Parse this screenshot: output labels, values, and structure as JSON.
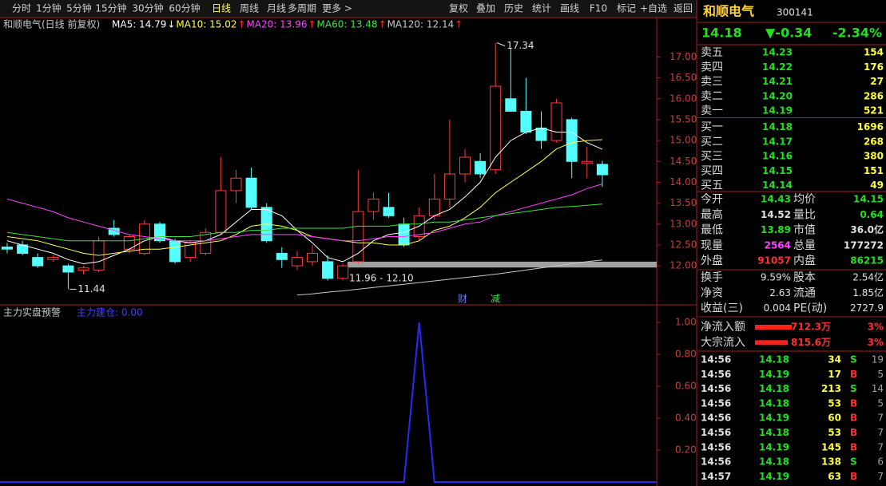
{
  "toolbar": {
    "periods": [
      "分时",
      "1分钟",
      "5分钟",
      "15分钟",
      "30分钟",
      "60分钟",
      "日线",
      "周线",
      "月线",
      "多周期",
      "更多 >"
    ],
    "actions": [
      "复权",
      "叠加",
      "历史",
      "统计",
      "画线",
      "F10",
      "标记",
      "+自选",
      "返回"
    ]
  },
  "kline": {
    "title": "和顺电气(日线 前复权)",
    "ma": [
      {
        "name": "MA5: 14.79",
        "arrow": "↓",
        "color": "#ffffff",
        "values": [
          12.6,
          12.5,
          12.4,
          12.3,
          12.15,
          12.05,
          12.1,
          12.25,
          12.4,
          12.6,
          12.7,
          12.6,
          12.55,
          12.6,
          12.75,
          13.05,
          13.35,
          13.35,
          13.2,
          12.85,
          12.55,
          12.2,
          12.1,
          12.3,
          12.6,
          12.75,
          12.8,
          12.95,
          13.2,
          13.35,
          13.65,
          14.0,
          14.6,
          15.0,
          15.2,
          15.3,
          15.2,
          15.2,
          14.95,
          14.79
        ]
      },
      {
        "name": "MA10: 15.02",
        "arrow": "↑",
        "color": "#ffff40",
        "values": [
          12.7,
          12.65,
          12.6,
          12.5,
          12.4,
          12.3,
          12.25,
          12.3,
          12.35,
          12.4,
          12.4,
          12.45,
          12.5,
          12.55,
          12.6,
          12.75,
          12.95,
          13.0,
          12.95,
          12.85,
          12.7,
          12.65,
          12.6,
          12.55,
          12.55,
          12.5,
          12.5,
          12.6,
          12.85,
          12.95,
          13.15,
          13.4,
          13.75,
          14.0,
          14.25,
          14.5,
          14.8,
          14.95,
          15.0,
          15.02
        ]
      },
      {
        "name": "MA20: 13.96",
        "arrow": "↑",
        "color": "#ff40ff",
        "values": [
          13.6,
          13.5,
          13.4,
          13.3,
          13.15,
          13.05,
          12.95,
          12.85,
          12.75,
          12.7,
          12.65,
          12.6,
          12.6,
          12.6,
          12.65,
          12.7,
          12.75,
          12.75,
          12.75,
          12.75,
          12.7,
          12.65,
          12.6,
          12.6,
          12.65,
          12.7,
          12.7,
          12.75,
          12.8,
          12.9,
          13.0,
          13.05,
          13.2,
          13.3,
          13.4,
          13.5,
          13.6,
          13.7,
          13.85,
          13.96
        ]
      },
      {
        "name": "MA60: 13.48",
        "arrow": "↑",
        "color": "#40e040",
        "values": [
          12.8,
          12.75,
          12.7,
          12.65,
          12.6,
          12.6,
          12.6,
          12.6,
          12.6,
          12.65,
          12.7,
          12.7,
          12.7,
          12.75,
          12.8,
          12.8,
          12.85,
          12.85,
          12.9,
          12.9,
          12.9,
          12.9,
          12.9,
          12.95,
          12.95,
          12.95,
          13.0,
          13.0,
          13.05,
          13.05,
          13.1,
          13.15,
          13.2,
          13.25,
          13.3,
          13.35,
          13.4,
          13.42,
          13.45,
          13.48
        ]
      },
      {
        "name": "MA120: 12.14",
        "arrow": "↑",
        "color": "#c8c8c8",
        "values": [
          null,
          null,
          null,
          null,
          null,
          null,
          null,
          null,
          null,
          null,
          null,
          null,
          null,
          null,
          null,
          null,
          null,
          null,
          null,
          11.3,
          11.33,
          11.37,
          11.4,
          11.44,
          11.48,
          11.52,
          11.56,
          11.6,
          11.64,
          11.68,
          11.72,
          11.76,
          11.8,
          11.85,
          11.9,
          11.95,
          12.0,
          12.05,
          12.1,
          12.14
        ]
      }
    ],
    "candles": [
      [
        12.45,
        12.55,
        12.3,
        12.4
      ],
      [
        12.5,
        12.6,
        12.25,
        12.3
      ],
      [
        12.2,
        12.3,
        11.95,
        12.0
      ],
      [
        12.15,
        12.25,
        12.1,
        12.2
      ],
      [
        12.0,
        12.05,
        11.44,
        11.85
      ],
      [
        11.9,
        12.0,
        11.8,
        11.95
      ],
      [
        11.9,
        12.7,
        11.85,
        12.6
      ],
      [
        12.9,
        13.1,
        12.7,
        12.75
      ],
      [
        12.4,
        12.75,
        12.3,
        12.7
      ],
      [
        12.3,
        13.1,
        12.25,
        13.0
      ],
      [
        13.0,
        13.05,
        12.55,
        12.6
      ],
      [
        12.6,
        12.65,
        12.05,
        12.1
      ],
      [
        12.2,
        12.6,
        12.1,
        12.55
      ],
      [
        12.3,
        12.9,
        12.25,
        12.8
      ],
      [
        12.8,
        14.6,
        12.75,
        13.8
      ],
      [
        13.8,
        14.3,
        13.5,
        14.1
      ],
      [
        14.1,
        14.35,
        13.35,
        13.4
      ],
      [
        13.4,
        13.5,
        12.55,
        12.6
      ],
      [
        12.3,
        12.45,
        11.95,
        12.15
      ],
      [
        12.0,
        12.35,
        11.9,
        12.2
      ],
      [
        12.1,
        12.5,
        12.0,
        12.3
      ],
      [
        12.1,
        12.25,
        11.65,
        11.7
      ],
      [
        11.7,
        12.05,
        11.65,
        12.0
      ],
      [
        12.1,
        14.3,
        12.05,
        13.3
      ],
      [
        13.3,
        13.75,
        13.1,
        13.6
      ],
      [
        13.4,
        13.75,
        13.15,
        13.2
      ],
      [
        13.0,
        13.15,
        12.45,
        12.5
      ],
      [
        12.7,
        13.4,
        12.6,
        13.2
      ],
      [
        13.2,
        14.2,
        13.1,
        13.6
      ],
      [
        13.6,
        15.5,
        13.4,
        14.2
      ],
      [
        14.2,
        14.8,
        14.0,
        14.6
      ],
      [
        14.5,
        14.7,
        14.1,
        14.2
      ],
      [
        14.3,
        17.34,
        14.2,
        16.3
      ],
      [
        16.0,
        17.2,
        15.7,
        15.7
      ],
      [
        15.7,
        16.5,
        15.15,
        15.2
      ],
      [
        15.3,
        15.7,
        14.8,
        15.0
      ],
      [
        15.0,
        16.0,
        14.95,
        15.9
      ],
      [
        15.5,
        15.55,
        14.1,
        14.5
      ],
      [
        14.45,
        14.85,
        14.1,
        14.5
      ],
      [
        14.43,
        14.52,
        13.89,
        14.18
      ]
    ],
    "ylim": [
      11.2,
      17.6
    ],
    "yticks": [
      {
        "value": 12,
        "label": "12.00"
      },
      {
        "value": 12.5,
        "label": "12.50"
      },
      {
        "value": 13,
        "label": "13.00"
      },
      {
        "value": 13.5,
        "label": "13.50"
      },
      {
        "value": 14,
        "label": "14.00"
      },
      {
        "value": 14.5,
        "label": "14.50"
      },
      {
        "value": 15,
        "label": "15.00"
      },
      {
        "value": 15.5,
        "label": "15.50"
      },
      {
        "value": 16,
        "label": "16.00"
      },
      {
        "value": 16.5,
        "label": "16.50"
      },
      {
        "value": 17,
        "label": "17.00"
      }
    ],
    "high_label": {
      "value": 17.34,
      "label": "17.34"
    },
    "low_label": {
      "value": 11.44,
      "label": "11.44"
    },
    "range": {
      "low": 11.96,
      "high": 12.1,
      "label": "11.96 - 12.10"
    },
    "markers": [
      "财",
      "减"
    ]
  },
  "indicator": {
    "title": "主力实盘预警",
    "legend": "主力建仓: 0.00",
    "values": [
      0,
      0,
      0,
      0,
      0,
      0,
      0,
      0,
      0,
      0,
      0,
      0,
      0,
      0,
      0,
      0,
      0,
      0,
      0,
      0,
      0,
      0,
      0,
      0,
      0,
      0,
      0,
      1,
      0,
      0,
      0,
      0,
      0,
      0,
      0,
      0,
      0,
      0,
      0,
      0
    ],
    "ylim": [
      0,
      1.02
    ],
    "yticks": [
      {
        "value": 0.2,
        "label": "0.20"
      },
      {
        "value": 0.4,
        "label": "0.40"
      },
      {
        "value": 0.6,
        "label": "0.60"
      },
      {
        "value": 0.8,
        "label": "0.80"
      },
      {
        "value": 1,
        "label": "1.00"
      }
    ]
  },
  "quote": {
    "name": "和顺电气",
    "code": "300141",
    "price": "14.18",
    "change": "▼-0.34",
    "pct": "-2.34%",
    "book": [
      [
        "卖五",
        "14.23",
        "154"
      ],
      [
        "卖四",
        "14.22",
        "176"
      ],
      [
        "卖三",
        "14.21",
        "27"
      ],
      [
        "卖二",
        "14.20",
        "286"
      ],
      [
        "卖一",
        "14.19",
        "521"
      ],
      [
        "买一",
        "14.18",
        "1696"
      ],
      [
        "买二",
        "14.17",
        "268"
      ],
      [
        "买三",
        "14.16",
        "380"
      ],
      [
        "买四",
        "14.15",
        "151"
      ],
      [
        "买五",
        "14.14",
        "49"
      ]
    ],
    "stats": [
      [
        "今开",
        "14.43",
        "均价",
        "14.15"
      ],
      [
        "最高",
        "14.52",
        "量比",
        "0.64"
      ],
      [
        "最低",
        "13.89",
        "市值",
        "36.0亿"
      ],
      [
        "现量",
        "2564",
        "总量",
        "177272"
      ],
      [
        "外盘",
        "91057",
        "内盘",
        "86215"
      ]
    ],
    "stats2": [
      [
        "换手",
        "9.59%",
        "股本",
        "2.54亿"
      ],
      [
        "净资",
        "2.63",
        "流通",
        "1.85亿"
      ],
      [
        "收益(三)",
        "0.004",
        "PE(动)",
        "2727.9"
      ]
    ],
    "flows": [
      [
        "净流入额",
        "712.3万",
        "3%"
      ],
      [
        "大宗流入",
        "815.6万",
        "3%"
      ]
    ],
    "ticks": [
      [
        "14:56",
        "14.18",
        "34",
        "S",
        "19"
      ],
      [
        "14:56",
        "14.19",
        "17",
        "B",
        "5"
      ],
      [
        "14:56",
        "14.18",
        "213",
        "S",
        "14"
      ],
      [
        "14:56",
        "14.18",
        "53",
        "B",
        "5"
      ],
      [
        "14:56",
        "14.19",
        "60",
        "B",
        "7"
      ],
      [
        "14:56",
        "14.18",
        "53",
        "B",
        "7"
      ],
      [
        "14:56",
        "14.19",
        "145",
        "B",
        "7"
      ],
      [
        "14:56",
        "14.18",
        "138",
        "S",
        "6"
      ],
      [
        "14:57",
        "14.19",
        "63",
        "B",
        "7"
      ]
    ]
  }
}
